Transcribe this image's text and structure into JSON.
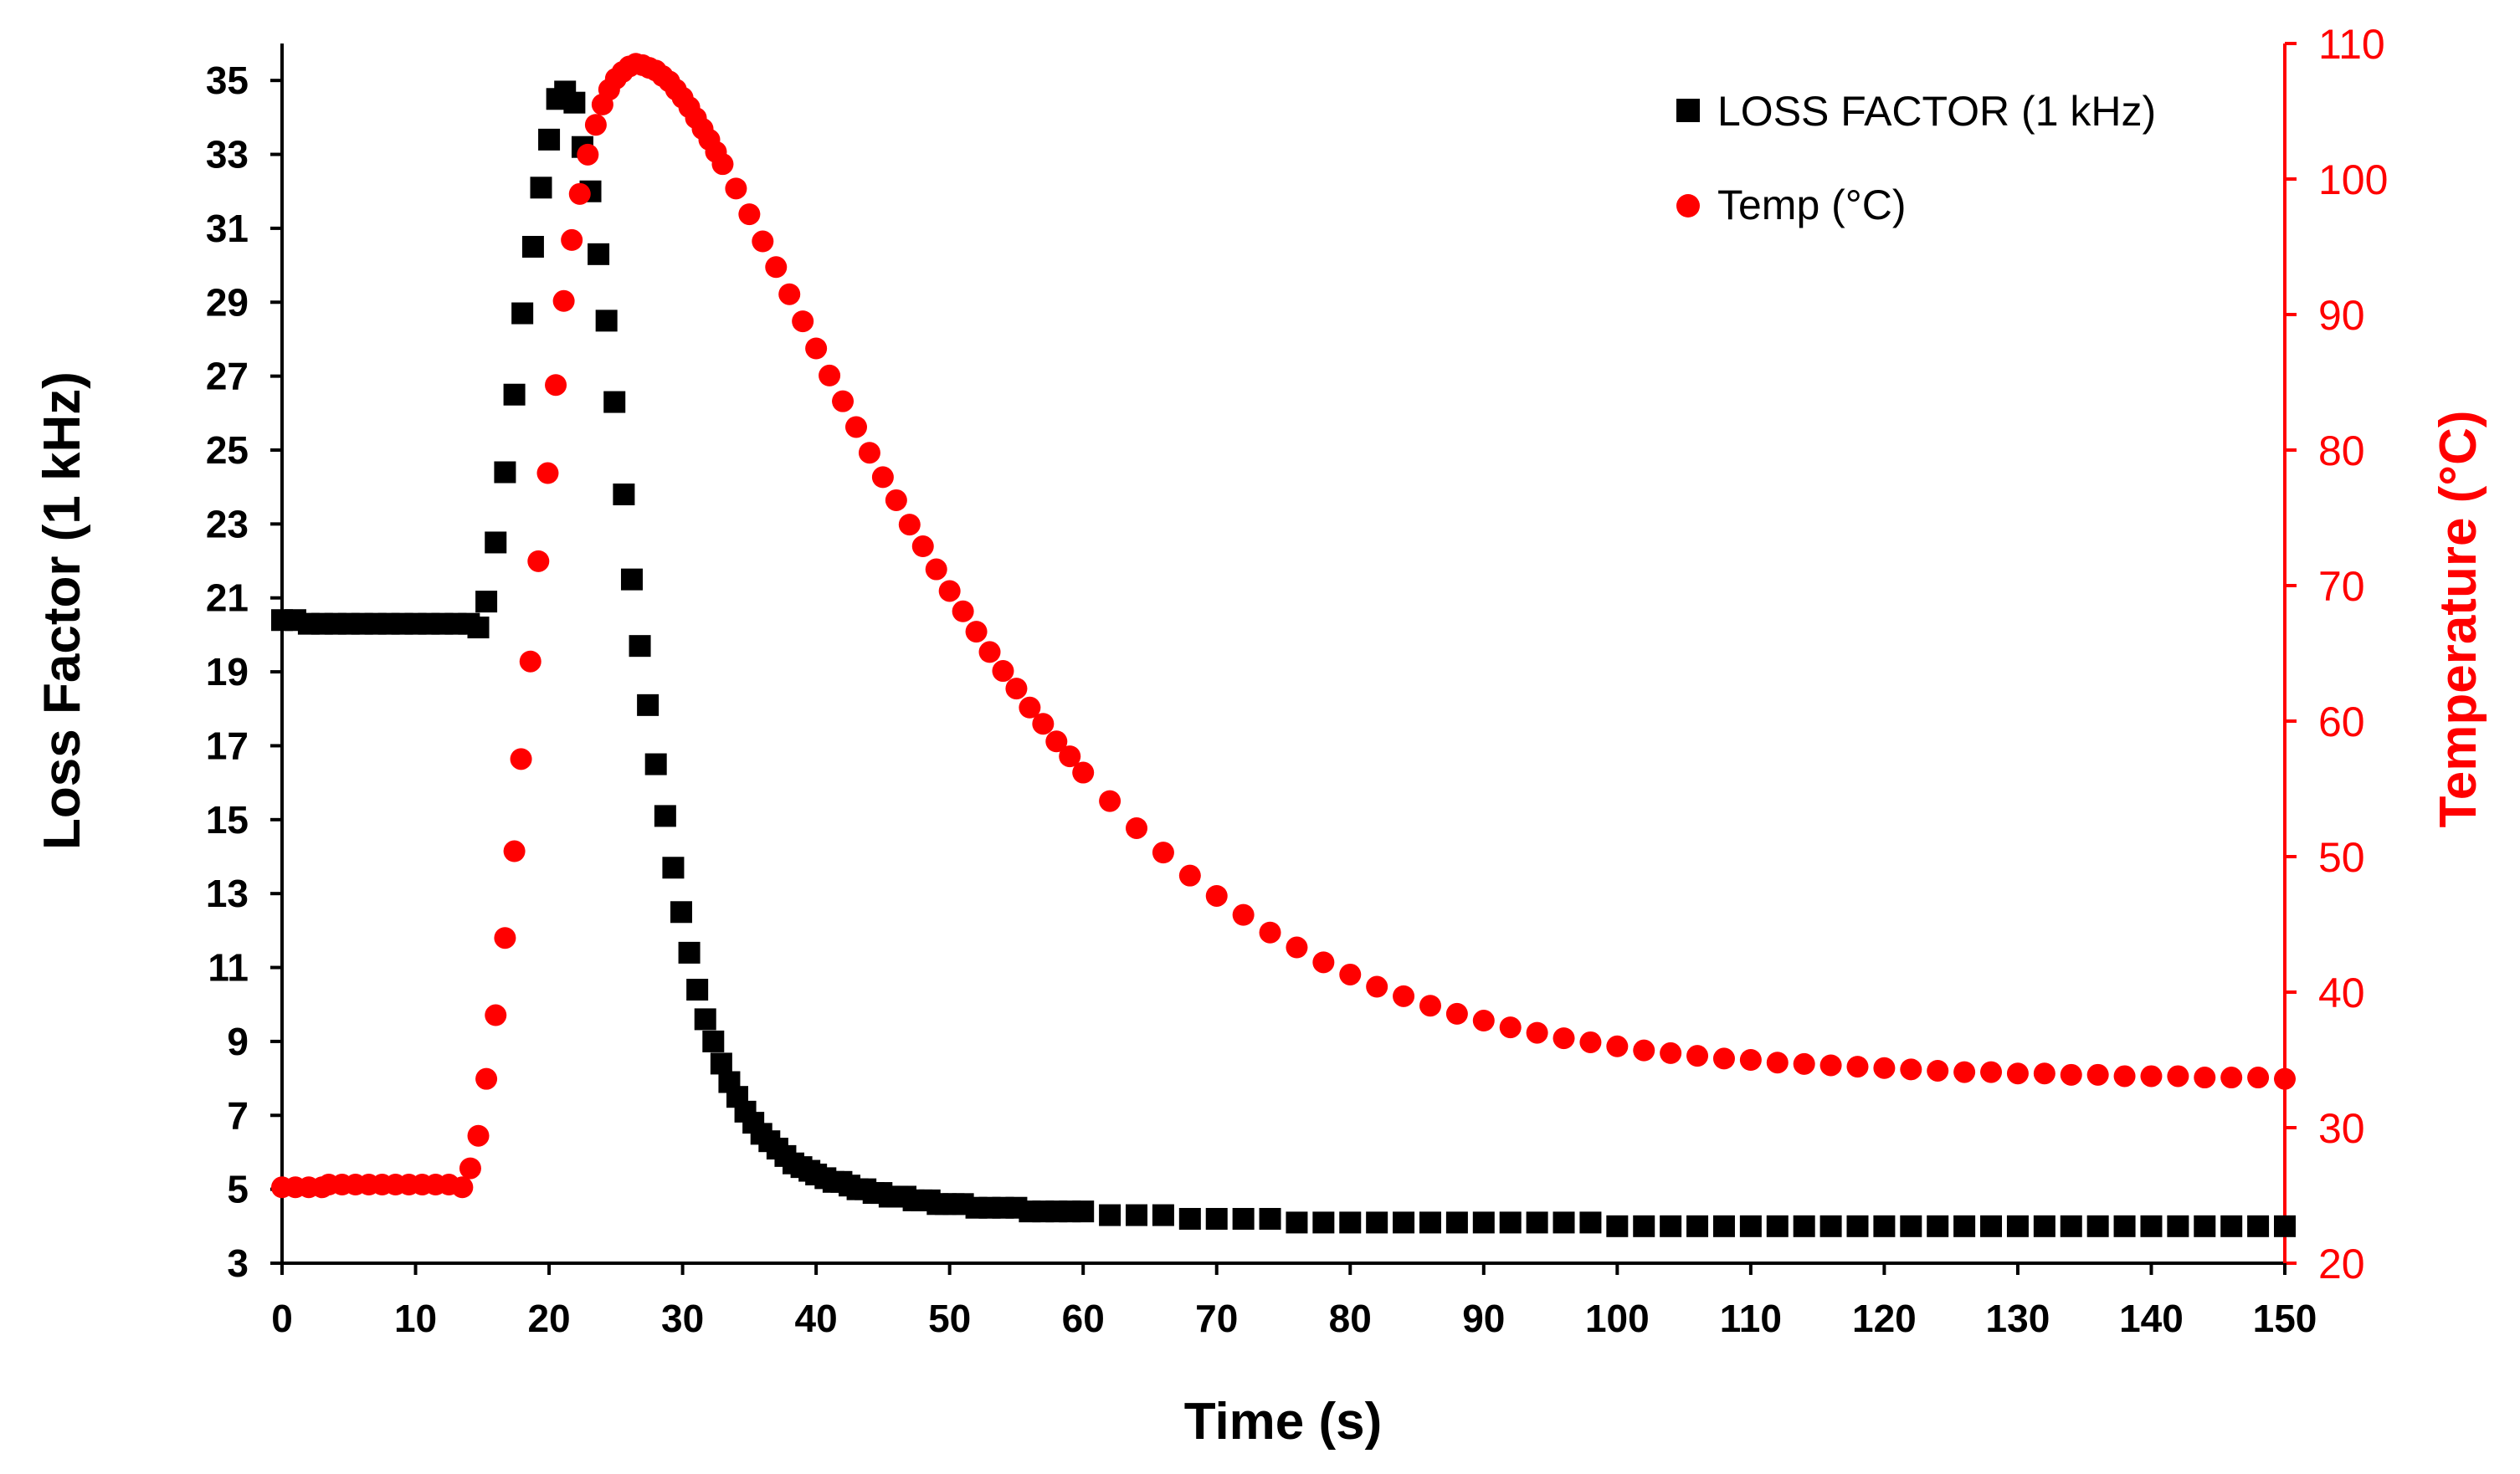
{
  "chart_data": {
    "type": "scatter",
    "title": "",
    "xlabel": "Time (s)",
    "ylabel": "Loss Factor (1 kHz)",
    "y2label": "Temperature (°C)",
    "xlim": [
      0,
      150
    ],
    "ylim": [
      3,
      36
    ],
    "y2lim": [
      20,
      110
    ],
    "xticks": [
      "0",
      "10",
      "20",
      "30",
      "40",
      "50",
      "60",
      "70",
      "80",
      "90",
      "100",
      "110",
      "120",
      "130",
      "140",
      "150"
    ],
    "yticks": [
      "3",
      "5",
      "7",
      "9",
      "11",
      "13",
      "15",
      "17",
      "19",
      "21",
      "23",
      "25",
      "27",
      "29",
      "31",
      "33",
      "35"
    ],
    "y2ticks": [
      "20",
      "30",
      "40",
      "50",
      "60",
      "70",
      "80",
      "90",
      "100",
      "110"
    ],
    "grid": false,
    "legend_position": "top-right",
    "series": [
      {
        "name": "LOSS FACTOR (1 kHz)",
        "axis": "left",
        "marker": "square",
        "color": "#000000",
        "points": [
          [
            0,
            20.4
          ],
          [
            1,
            20.4
          ],
          [
            2,
            20.3
          ],
          [
            3,
            20.3
          ],
          [
            4,
            20.3
          ],
          [
            5,
            20.3
          ],
          [
            6,
            20.3
          ],
          [
            7,
            20.3
          ],
          [
            8,
            20.3
          ],
          [
            9,
            20.3
          ],
          [
            10,
            20.3
          ],
          [
            11,
            20.3
          ],
          [
            12,
            20.3
          ],
          [
            13,
            20.3
          ],
          [
            14,
            20.3
          ],
          [
            14.7,
            20.2
          ],
          [
            15.3,
            20.9
          ],
          [
            16,
            22.5
          ],
          [
            16.7,
            24.4
          ],
          [
            17.4,
            26.5
          ],
          [
            18,
            28.7
          ],
          [
            18.8,
            30.5
          ],
          [
            19.4,
            32.1
          ],
          [
            20,
            33.4
          ],
          [
            20.6,
            34.5
          ],
          [
            21.2,
            34.7
          ],
          [
            21.9,
            34.4
          ],
          [
            22.5,
            33.2
          ],
          [
            23.1,
            32
          ],
          [
            23.7,
            30.3
          ],
          [
            24.3,
            28.5
          ],
          [
            24.9,
            26.3
          ],
          [
            25.6,
            23.8
          ],
          [
            26.2,
            21.5
          ],
          [
            26.8,
            19.7
          ],
          [
            27.4,
            18.1
          ],
          [
            28,
            16.5
          ],
          [
            28.7,
            15.1
          ],
          [
            29.3,
            13.7
          ],
          [
            29.9,
            12.5
          ],
          [
            30.5,
            11.4
          ],
          [
            31.1,
            10.4
          ],
          [
            31.7,
            9.6
          ],
          [
            32.3,
            9
          ],
          [
            32.9,
            8.4
          ],
          [
            33.5,
            7.9
          ],
          [
            34.1,
            7.5
          ],
          [
            34.7,
            7.1
          ],
          [
            35.3,
            6.8
          ],
          [
            35.9,
            6.5
          ],
          [
            36.5,
            6.3
          ],
          [
            37.1,
            6.1
          ],
          [
            37.7,
            5.9
          ],
          [
            38.3,
            5.7
          ],
          [
            38.9,
            5.6
          ],
          [
            39.5,
            5.5
          ],
          [
            40,
            5.4
          ],
          [
            40.7,
            5.3
          ],
          [
            41.3,
            5.2
          ],
          [
            41.9,
            5.2
          ],
          [
            42.5,
            5.1
          ],
          [
            43.1,
            5.0
          ],
          [
            43.7,
            5.0
          ],
          [
            44.3,
            4.9
          ],
          [
            44.9,
            4.9
          ],
          [
            45.5,
            4.8
          ],
          [
            46.1,
            4.8
          ],
          [
            46.7,
            4.8
          ],
          [
            47.3,
            4.7
          ],
          [
            47.9,
            4.7
          ],
          [
            48.5,
            4.7
          ],
          [
            49.1,
            4.6
          ],
          [
            49.7,
            4.6
          ],
          [
            50.3,
            4.6
          ],
          [
            51,
            4.6
          ],
          [
            52,
            4.5
          ],
          [
            53,
            4.5
          ],
          [
            54,
            4.5
          ],
          [
            55,
            4.5
          ],
          [
            56,
            4.4
          ],
          [
            57,
            4.4
          ],
          [
            58,
            4.4
          ],
          [
            59,
            4.4
          ],
          [
            60,
            4.4
          ],
          [
            62,
            4.3
          ],
          [
            64,
            4.3
          ],
          [
            66,
            4.3
          ],
          [
            68,
            4.2
          ],
          [
            70,
            4.2
          ],
          [
            72,
            4.2
          ],
          [
            74,
            4.2
          ],
          [
            76,
            4.1
          ],
          [
            78,
            4.1
          ],
          [
            80,
            4.1
          ],
          [
            82,
            4.1
          ],
          [
            84,
            4.1
          ],
          [
            86,
            4.1
          ],
          [
            88,
            4.1
          ],
          [
            90,
            4.1
          ],
          [
            92,
            4.1
          ],
          [
            94,
            4.1
          ],
          [
            96,
            4.1
          ],
          [
            98,
            4.1
          ],
          [
            100,
            4.0
          ],
          [
            102,
            4.0
          ],
          [
            104,
            4.0
          ],
          [
            106,
            4.0
          ],
          [
            108,
            4.0
          ],
          [
            110,
            4.0
          ],
          [
            112,
            4.0
          ],
          [
            114,
            4.0
          ],
          [
            116,
            4.0
          ],
          [
            118,
            4.0
          ],
          [
            120,
            4.0
          ],
          [
            122,
            4.0
          ],
          [
            124,
            4.0
          ],
          [
            126,
            4.0
          ],
          [
            128,
            4.0
          ],
          [
            130,
            4.0
          ],
          [
            132,
            4.0
          ],
          [
            134,
            4.0
          ],
          [
            136,
            4.0
          ],
          [
            138,
            4.0
          ],
          [
            140,
            4.0
          ],
          [
            142,
            4.0
          ],
          [
            144,
            4.0
          ],
          [
            146,
            4.0
          ],
          [
            148,
            4.0
          ],
          [
            150,
            4.0
          ]
        ]
      },
      {
        "name": "Temp (°C)",
        "axis": "right",
        "marker": "circle",
        "color": "#ff0000",
        "points": [
          [
            0,
            25.6
          ],
          [
            1,
            25.6
          ],
          [
            2,
            25.6
          ],
          [
            3,
            25.6
          ],
          [
            3.5,
            25.8
          ],
          [
            4.5,
            25.8
          ],
          [
            5.5,
            25.8
          ],
          [
            6.5,
            25.8
          ],
          [
            7.5,
            25.8
          ],
          [
            8.5,
            25.8
          ],
          [
            9.5,
            25.8
          ],
          [
            10.5,
            25.8
          ],
          [
            11.5,
            25.8
          ],
          [
            12.5,
            25.8
          ],
          [
            13.5,
            25.6
          ],
          [
            14.1,
            27
          ],
          [
            14.7,
            29.4
          ],
          [
            15.3,
            33.6
          ],
          [
            16,
            38.3
          ],
          [
            16.7,
            44
          ],
          [
            17.4,
            50.4
          ],
          [
            17.9,
            57.2
          ],
          [
            18.6,
            64.4
          ],
          [
            19.2,
            71.8
          ],
          [
            19.9,
            78.3
          ],
          [
            20.5,
            84.8
          ],
          [
            21.1,
            91
          ],
          [
            21.7,
            95.5
          ],
          [
            22.3,
            98.9
          ],
          [
            22.9,
            101.8
          ],
          [
            23.5,
            104
          ],
          [
            24,
            105.5
          ],
          [
            24.5,
            106.6
          ],
          [
            25,
            107.4
          ],
          [
            25.5,
            107.9
          ],
          [
            26,
            108.3
          ],
          [
            26.5,
            108.5
          ],
          [
            27,
            108.4
          ],
          [
            27.5,
            108.2
          ],
          [
            28,
            108
          ],
          [
            28.5,
            107.6
          ],
          [
            29,
            107.2
          ],
          [
            29.5,
            106.6
          ],
          [
            30,
            106
          ],
          [
            30.5,
            105.3
          ],
          [
            31,
            104.5
          ],
          [
            31.5,
            103.7
          ],
          [
            32,
            102.9
          ],
          [
            32.5,
            102
          ],
          [
            33,
            101.1
          ],
          [
            34,
            99.3
          ],
          [
            35,
            97.4
          ],
          [
            36,
            95.4
          ],
          [
            37,
            93.5
          ],
          [
            38,
            91.5
          ],
          [
            39,
            89.5
          ],
          [
            40,
            87.5
          ],
          [
            41,
            85.5
          ],
          [
            42,
            83.6
          ],
          [
            43,
            81.7
          ],
          [
            44,
            79.8
          ],
          [
            45,
            78
          ],
          [
            46,
            76.3
          ],
          [
            47,
            74.5
          ],
          [
            48,
            72.9
          ],
          [
            49,
            71.2
          ],
          [
            50,
            69.6
          ],
          [
            51,
            68.1
          ],
          [
            52,
            66.6
          ],
          [
            53,
            65.1
          ],
          [
            54,
            63.7
          ],
          [
            55,
            62.4
          ],
          [
            56,
            61
          ],
          [
            57,
            59.8
          ],
          [
            58,
            58.5
          ],
          [
            59,
            57.4
          ],
          [
            60,
            56.2
          ],
          [
            62,
            54.1
          ],
          [
            64,
            52.1
          ],
          [
            66,
            50.3
          ],
          [
            68,
            48.6
          ],
          [
            70,
            47.1
          ],
          [
            72,
            45.7
          ],
          [
            74,
            44.4
          ],
          [
            76,
            43.3
          ],
          [
            78,
            42.2
          ],
          [
            80,
            41.3
          ],
          [
            82,
            40.4
          ],
          [
            84,
            39.7
          ],
          [
            86,
            39
          ],
          [
            88,
            38.4
          ],
          [
            90,
            37.9
          ],
          [
            92,
            37.4
          ],
          [
            94,
            37
          ],
          [
            96,
            36.6
          ],
          [
            98,
            36.3
          ],
          [
            100,
            36
          ],
          [
            102,
            35.7
          ],
          [
            104,
            35.5
          ],
          [
            106,
            35.3
          ],
          [
            108,
            35.1
          ],
          [
            110,
            35
          ],
          [
            112,
            34.8
          ],
          [
            114,
            34.7
          ],
          [
            116,
            34.6
          ],
          [
            118,
            34.5
          ],
          [
            120,
            34.4
          ],
          [
            122,
            34.3
          ],
          [
            124,
            34.2
          ],
          [
            126,
            34.1
          ],
          [
            128,
            34.1
          ],
          [
            130,
            34
          ],
          [
            132,
            34
          ],
          [
            134,
            33.9
          ],
          [
            136,
            33.9
          ],
          [
            138,
            33.8
          ],
          [
            140,
            33.8
          ],
          [
            142,
            33.8
          ],
          [
            144,
            33.7
          ],
          [
            146,
            33.7
          ],
          [
            148,
            33.7
          ],
          [
            150,
            33.6
          ]
        ]
      }
    ]
  }
}
